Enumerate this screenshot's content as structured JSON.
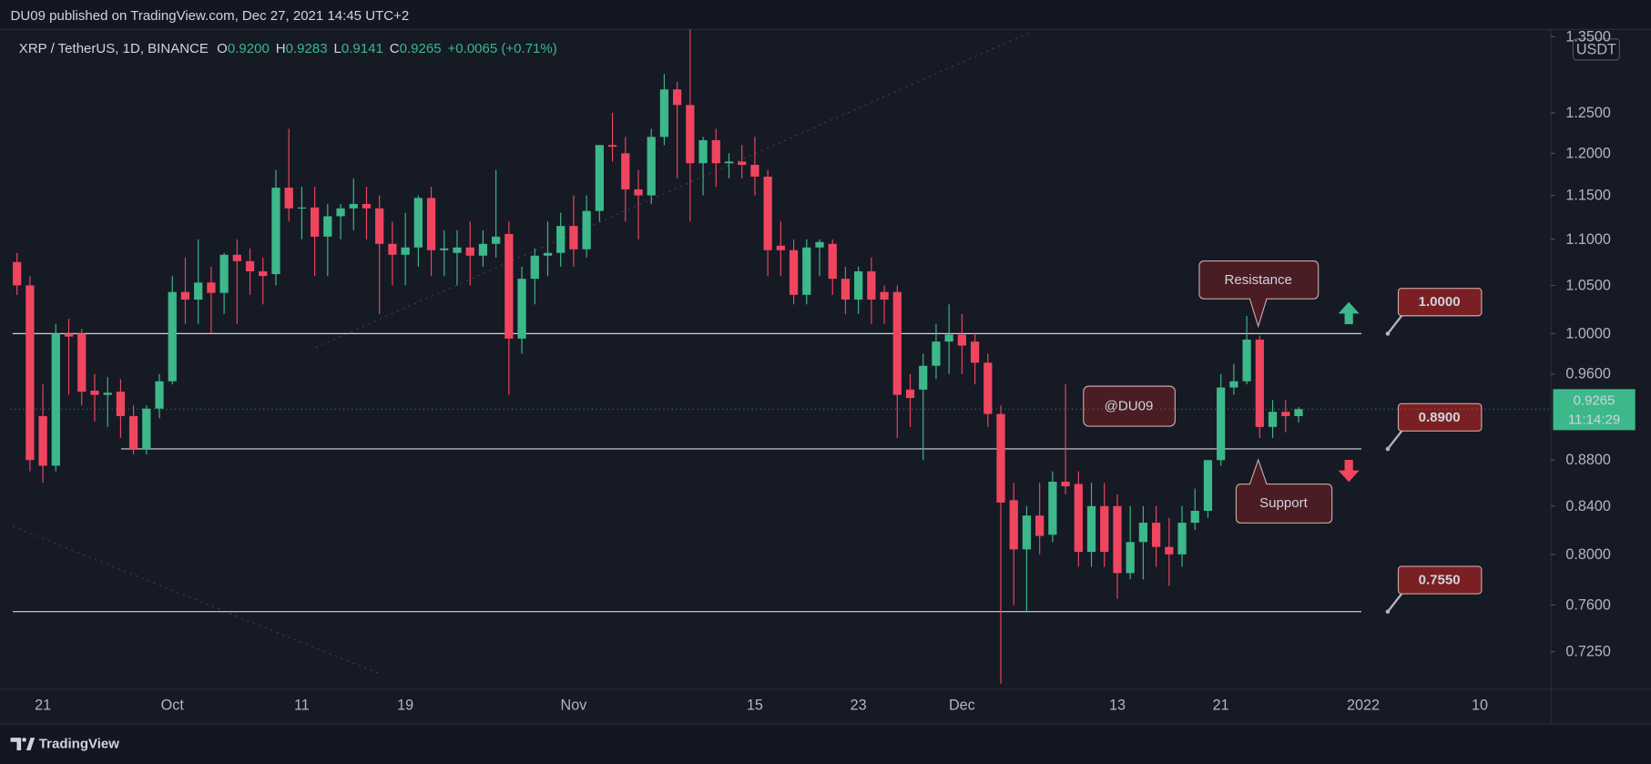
{
  "header": {
    "publisher": "DU09 published on TradingView.com, Dec 27, 2021 14:45 UTC+2"
  },
  "chart_data": {
    "type": "candlestick",
    "symbol": "XRP / TetherUS, 1D, BINANCE",
    "ohlc_legend": [
      {
        "key": "O",
        "text": "0.9200"
      },
      {
        "key": "H",
        "text": "0.9283"
      },
      {
        "key": "L",
        "text": "0.9141"
      },
      {
        "key": "C",
        "text": "0.9265"
      }
    ],
    "change": "+0.0065 (+0.71%)",
    "currency": "USDT",
    "countdown": "11:14:29",
    "up_color": "#3cb88a",
    "down_color": "#f0455f",
    "log_scale": true,
    "ylim": [
      0.698,
      1.36
    ],
    "yticks": [
      {
        "value": 1.35,
        "label": "1.3500"
      },
      {
        "value": 1.25,
        "label": "1.2500"
      },
      {
        "value": 1.2,
        "label": "1.2000"
      },
      {
        "value": 1.15,
        "label": "1.1500"
      },
      {
        "value": 1.1,
        "label": "1.1000"
      },
      {
        "value": 1.05,
        "label": "1.0500"
      },
      {
        "value": 1,
        "label": "1.0000"
      },
      {
        "value": 0.96,
        "label": "0.9600"
      },
      {
        "value": 0.88,
        "label": "0.8800"
      },
      {
        "value": 0.84,
        "label": "0.8400"
      },
      {
        "value": 0.8,
        "label": "0.8000"
      },
      {
        "value": 0.76,
        "label": "0.7600"
      },
      {
        "value": 0.725,
        "label": "0.7250"
      }
    ],
    "levels": [
      {
        "value": 1,
        "label": "1.0000"
      },
      {
        "value": 0.89,
        "label": "0.8900"
      },
      {
        "value": 0.755,
        "label": "0.7550"
      }
    ],
    "annotations": {
      "resistance": "Resistance",
      "support": "Support",
      "watermark": "@DU09"
    },
    "categories": [
      null,
      null,
      "21",
      null,
      null,
      null,
      null,
      null,
      null,
      null,
      null,
      null,
      "Oct",
      null,
      null,
      null,
      null,
      null,
      null,
      null,
      null,
      null,
      "11",
      null,
      null,
      null,
      null,
      null,
      null,
      null,
      "19",
      null,
      null,
      null,
      null,
      null,
      null,
      null,
      null,
      null,
      null,
      null,
      null,
      "Nov",
      null,
      null,
      null,
      null,
      null,
      null,
      null,
      null,
      null,
      null,
      null,
      null,
      null,
      "15",
      null,
      null,
      null,
      null,
      null,
      null,
      null,
      "23",
      null,
      null,
      null,
      null,
      null,
      null,
      null,
      "Dec",
      null,
      null,
      null,
      null,
      null,
      null,
      null,
      null,
      null,
      null,
      null,
      "13",
      null,
      null,
      null,
      null,
      null,
      null,
      null,
      "21",
      null,
      null,
      null,
      null,
      null,
      null,
      null,
      null,
      null,
      null,
      "2022",
      null,
      null,
      null,
      null,
      null,
      null,
      null,
      null,
      "10",
      null,
      null,
      null,
      null,
      null
    ],
    "open": [
      1.075,
      1.05,
      0.92,
      0.875,
      1.0,
      1.0,
      0.944,
      0.94,
      0.943,
      0.92,
      0.89,
      0.927,
      0.953,
      1.043,
      1.035,
      1.053,
      1.042,
      1.083,
      1.076,
      1.065,
      1.062,
      1.159,
      1.135,
      1.136,
      1.103,
      1.126,
      1.135,
      1.14,
      1.135,
      1.095,
      1.083,
      1.091,
      1.147,
      1.088,
      1.085,
      1.091,
      1.082,
      1.095,
      1.106,
      0.995,
      1.057,
      1.082,
      1.085,
      1.115,
      1.089,
      1.132,
      1.21,
      1.2,
      1.157,
      1.15,
      1.22,
      1.28,
      1.26,
      1.188,
      1.216,
      1.188,
      1.19,
      1.186,
      1.172,
      1.093,
      1.088,
      1.04,
      1.091,
      1.095,
      1.057,
      1.035,
      1.065,
      1.043,
      1.043,
      0.945,
      0.945,
      0.968,
      0.992,
      0.999,
      0.992,
      0.971,
      0.922,
      0.845,
      0.804,
      0.832,
      0.816,
      0.861,
      0.859,
      0.802,
      0.84,
      0.84,
      0.785,
      0.81,
      0.826,
      0.806,
      0.8,
      0.826,
      0.836,
      0.88,
      0.947,
      0.953,
      0.994,
      0.91,
      0.924,
      0.92,
      null,
      null,
      null,
      null,
      null,
      null,
      null,
      null,
      null,
      null,
      null,
      null,
      null,
      null,
      null,
      null,
      null,
      null,
      null
    ],
    "high": [
      1.085,
      1.06,
      0.95,
      1.01,
      1.015,
      1.005,
      0.96,
      0.957,
      0.955,
      0.93,
      0.93,
      0.96,
      1.06,
      1.08,
      1.1,
      1.07,
      1.085,
      1.1,
      1.09,
      1.08,
      1.18,
      1.23,
      1.16,
      1.16,
      1.14,
      1.14,
      1.17,
      1.16,
      1.15,
      1.12,
      1.13,
      1.15,
      1.16,
      1.11,
      1.11,
      1.12,
      1.11,
      1.18,
      1.12,
      1.07,
      1.09,
      1.12,
      1.13,
      1.15,
      1.15,
      1.21,
      1.25,
      1.22,
      1.18,
      1.23,
      1.3,
      1.29,
      1.36,
      1.22,
      1.23,
      1.2,
      1.21,
      1.22,
      1.18,
      1.12,
      1.1,
      1.1,
      1.1,
      1.1,
      1.07,
      1.07,
      1.08,
      1.05,
      1.05,
      0.96,
      0.98,
      1.01,
      1.03,
      1.02,
      1.0,
      0.98,
      0.93,
      0.86,
      0.84,
      0.86,
      0.87,
      0.95,
      0.87,
      0.86,
      0.86,
      0.85,
      0.84,
      0.84,
      0.84,
      0.83,
      0.84,
      0.855,
      0.88,
      0.96,
      0.97,
      1.018,
      0.998,
      0.935,
      0.935,
      0.9283,
      null,
      null,
      null,
      null,
      null,
      null,
      null,
      null,
      null,
      null,
      null,
      null,
      null,
      null,
      null,
      null,
      null,
      null,
      null
    ],
    "low": [
      1.04,
      0.87,
      0.86,
      0.87,
      0.94,
      0.93,
      0.915,
      0.91,
      0.9,
      0.885,
      0.885,
      0.918,
      0.95,
      1.01,
      1.01,
      1.0,
      1.02,
      1.01,
      1.04,
      1.03,
      1.05,
      1.12,
      1.1,
      1.06,
      1.06,
      1.1,
      1.11,
      1.1,
      1.02,
      1.05,
      1.05,
      1.07,
      1.06,
      1.06,
      1.05,
      1.05,
      1.07,
      1.08,
      0.94,
      0.98,
      1.03,
      1.06,
      1.07,
      1.07,
      1.08,
      1.12,
      1.19,
      1.12,
      1.1,
      1.14,
      1.21,
      1.17,
      1.12,
      1.15,
      1.16,
      1.17,
      1.17,
      1.15,
      1.06,
      1.06,
      1.03,
      1.03,
      1.06,
      1.04,
      1.02,
      1.02,
      1.01,
      1.01,
      0.9,
      0.91,
      0.88,
      0.955,
      0.96,
      0.96,
      0.95,
      0.91,
      0.702,
      0.76,
      0.755,
      0.8,
      0.81,
      0.85,
      0.79,
      0.79,
      0.79,
      0.765,
      0.78,
      0.78,
      0.79,
      0.775,
      0.79,
      0.82,
      0.83,
      0.875,
      0.94,
      0.95,
      0.9,
      0.9,
      0.905,
      0.9141,
      null,
      null,
      null,
      null,
      null,
      null,
      null,
      null,
      null,
      null,
      null,
      null,
      null,
      null,
      null,
      null,
      null,
      null,
      null
    ],
    "close": [
      1.05,
      0.88,
      0.875,
      1.0,
      0.997,
      0.943,
      0.94,
      0.942,
      0.92,
      0.89,
      0.927,
      0.953,
      1.043,
      1.035,
      1.053,
      1.042,
      1.083,
      1.076,
      1.065,
      1.06,
      1.159,
      1.135,
      1.136,
      1.103,
      1.126,
      1.135,
      1.14,
      1.135,
      1.095,
      1.083,
      1.091,
      1.147,
      1.088,
      1.09,
      1.091,
      1.082,
      1.095,
      1.103,
      0.995,
      1.057,
      1.082,
      1.085,
      1.115,
      1.089,
      1.132,
      1.21,
      1.208,
      1.157,
      1.15,
      1.22,
      1.28,
      1.26,
      1.188,
      1.216,
      1.188,
      1.19,
      1.186,
      1.172,
      1.088,
      1.088,
      1.04,
      1.091,
      1.097,
      1.057,
      1.035,
      1.065,
      1.035,
      1.035,
      0.94,
      0.937,
      0.968,
      0.992,
      0.999,
      0.988,
      0.971,
      0.922,
      0.843,
      0.804,
      0.832,
      0.815,
      0.861,
      0.857,
      0.802,
      0.84,
      0.802,
      0.785,
      0.81,
      0.826,
      0.806,
      0.8,
      0.826,
      0.836,
      0.88,
      0.947,
      0.953,
      0.994,
      0.91,
      0.924,
      0.92,
      0.9265,
      null,
      null,
      null,
      null,
      null,
      null,
      null,
      null,
      null,
      null,
      null,
      null,
      null,
      null,
      null,
      null,
      null,
      null,
      null
    ]
  },
  "footer": {
    "brand": "TradingView"
  }
}
